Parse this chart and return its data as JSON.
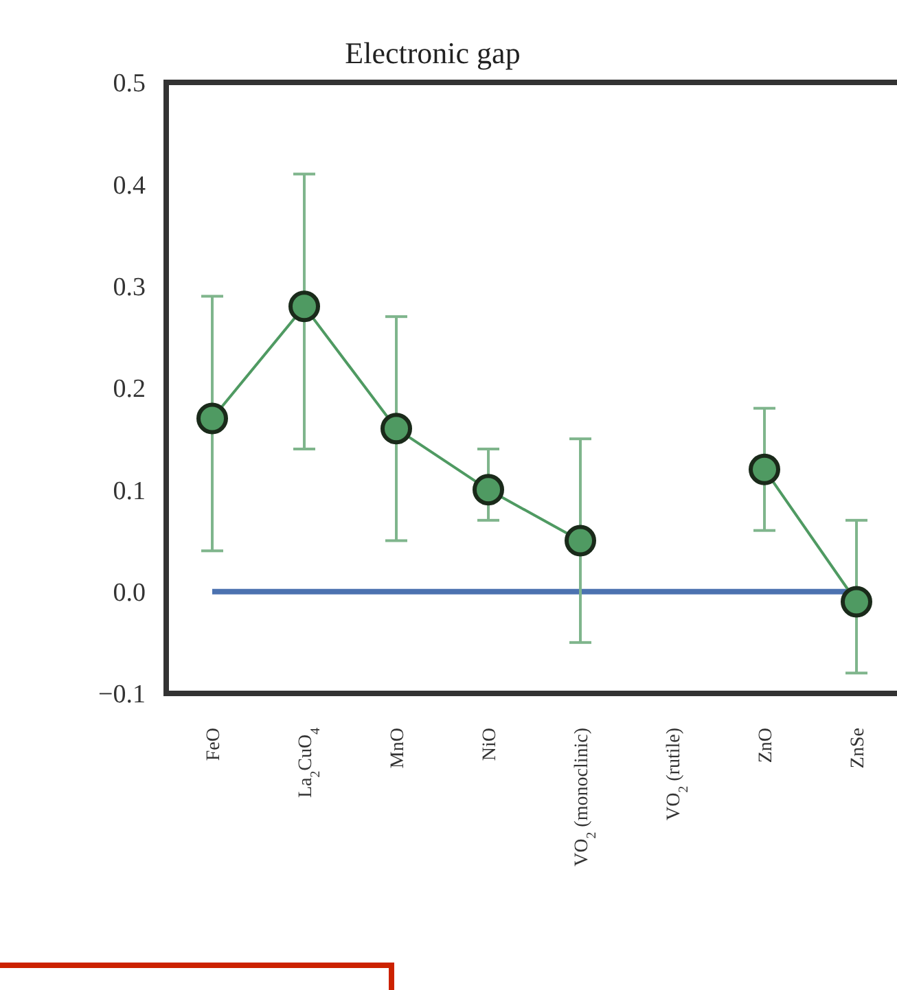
{
  "chart_data": {
    "type": "line",
    "title": "Electronic gap",
    "categories": [
      "FeO",
      "La$_{2}$CuO$_{4}$",
      "MnO",
      "NiO",
      "VO$_{2}$ (monoclinic)",
      "VO$_{2}$ (rutile)",
      "ZnO",
      "ZnSe"
    ],
    "series": [
      {
        "color": "#4f9a62",
        "values": [
          0.17,
          0.28,
          0.16,
          0.1,
          0.05,
          null,
          0.12,
          -0.01
        ],
        "errors": [
          [
            0.04,
            0.29
          ],
          [
            0.14,
            0.41
          ],
          [
            0.05,
            0.27
          ],
          [
            0.07,
            0.14
          ],
          [
            -0.05,
            0.15
          ],
          null,
          [
            0.06,
            0.18
          ],
          [
            -0.08,
            0.07
          ]
        ]
      }
    ],
    "ylim": [
      -0.1,
      0.5
    ],
    "yticks": [
      {
        "value": -0.1,
        "label": "−0.1"
      },
      {
        "value": 0,
        "label": "0.0"
      },
      0.1,
      0.2,
      0.3,
      0.4,
      0.5
    ],
    "ref_lines": [
      {
        "axis": "y",
        "value": 0,
        "color": "#4c72b0"
      }
    ],
    "marker": "circle",
    "line_style": "solid",
    "grid": false
  }
}
